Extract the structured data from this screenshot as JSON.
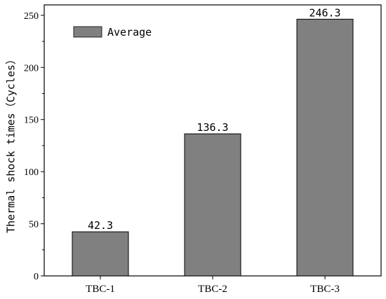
{
  "chart_data": {
    "type": "bar",
    "categories": [
      "TBC-1",
      "TBC-2",
      "TBC-3"
    ],
    "series": [
      {
        "name": "Average",
        "values": [
          42.3,
          136.3,
          246.3
        ],
        "color": "#808080"
      }
    ],
    "data_labels": [
      "42.3",
      "136.3",
      "246.3"
    ],
    "title": "",
    "xlabel": "",
    "ylabel": "Thermal shock times（Cycles）",
    "ylim": [
      0,
      260
    ],
    "yticks": [
      0,
      50,
      100,
      150,
      200,
      250
    ],
    "grid": false,
    "legend_position": "top-left"
  }
}
